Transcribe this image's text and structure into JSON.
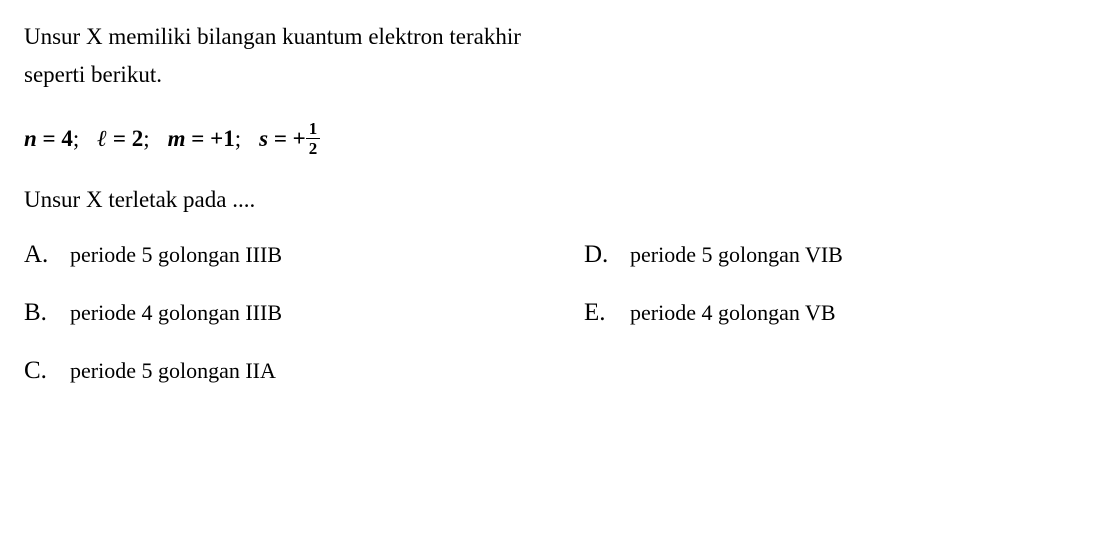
{
  "question": {
    "line1": "Unsur X memiliki bilangan kuantum elektron terakhir",
    "line2": "seperti berikut."
  },
  "equation": {
    "n_var": "n",
    "n_eq": " = 4",
    "l_var": "ℓ",
    "l_eq": " = 2",
    "m_var": "m",
    "m_eq": " = +1",
    "s_var": "s",
    "s_eq": " = +",
    "frac_num": "1",
    "frac_den": "2",
    "semicolon": ";"
  },
  "prompt": "Unsur X terletak pada ....",
  "options": {
    "a": {
      "letter": "A.",
      "text": "periode 5 golongan IIIB"
    },
    "b": {
      "letter": "B.",
      "text": "periode 4 golongan IIIB"
    },
    "c": {
      "letter": "C.",
      "text": "periode 5 golongan IIA"
    },
    "d": {
      "letter": "D.",
      "text": "periode 5 golongan VIB"
    },
    "e": {
      "letter": "E.",
      "text": "periode 4 golongan VB"
    }
  },
  "styles": {
    "text_color": "#000000",
    "background_color": "#ffffff",
    "body_fontsize": 23,
    "option_letter_fontsize": 25,
    "option_text_fontsize": 22
  }
}
